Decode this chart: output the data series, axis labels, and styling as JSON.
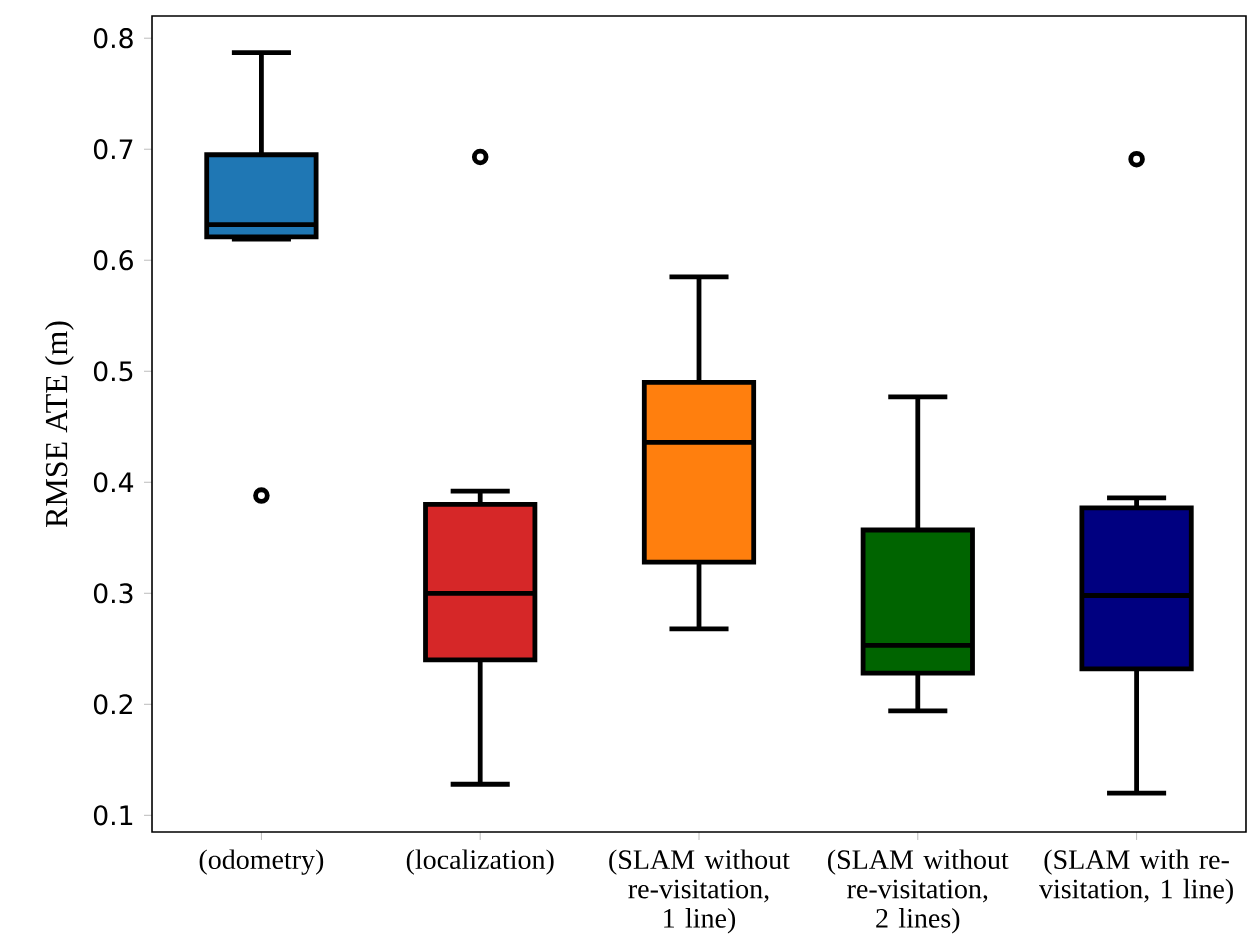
{
  "chart_data": {
    "type": "box",
    "ylabel": "RMSE ATE (m)",
    "categories": [
      "(odometry)",
      "(localization)",
      "(SLAM without re-visitation, 1 line)",
      "(SLAM without re-visitation, 2 lines)",
      "(SLAM with re-visitation, 1 line)"
    ],
    "boxes": [
      {
        "low": 0.619,
        "q1": 0.621,
        "median": 0.632,
        "q3": 0.695,
        "high": 0.787,
        "outliers": [
          0.388
        ]
      },
      {
        "low": 0.128,
        "q1": 0.24,
        "median": 0.3,
        "q3": 0.38,
        "high": 0.392,
        "outliers": [
          0.693
        ]
      },
      {
        "low": 0.268,
        "q1": 0.328,
        "median": 0.436,
        "q3": 0.49,
        "high": 0.585
      },
      {
        "low": 0.194,
        "q1": 0.228,
        "median": 0.253,
        "q3": 0.357,
        "high": 0.477
      },
      {
        "low": 0.12,
        "q1": 0.232,
        "median": 0.298,
        "q3": 0.377,
        "high": 0.386,
        "outliers": [
          0.691
        ]
      }
    ],
    "colors": [
      "#1f77b4",
      "#d62728",
      "#ff7f0e",
      "#006400",
      "#000080"
    ],
    "ylim": [
      0.085,
      0.82
    ],
    "yticks": [
      0.1,
      0.2,
      0.3,
      0.4,
      0.5,
      0.6,
      0.7,
      0.8
    ]
  }
}
